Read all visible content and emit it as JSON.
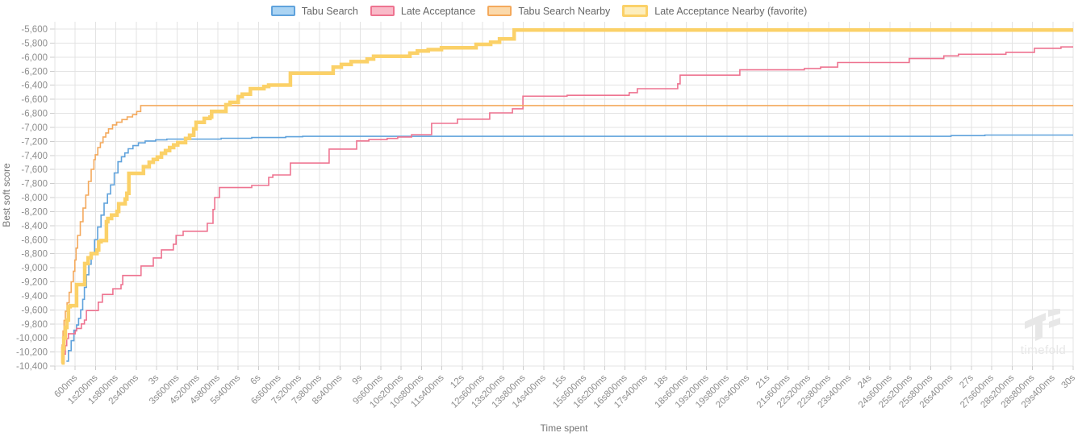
{
  "chart_data": {
    "type": "line",
    "title": "",
    "xlabel": "Time spent",
    "ylabel": "Best soft score",
    "legend_position": "top",
    "grid": true,
    "x_range_ms": [
      0,
      30000
    ],
    "y_range": [
      -10400,
      -5600
    ],
    "y_tick_step": 200,
    "x_tick_interval_ms": 600,
    "x_tick_labels": [
      "600ms",
      "1s200ms",
      "1s800ms",
      "2s400ms",
      "3s",
      "3s600ms",
      "4s200ms",
      "4s800ms",
      "5s400ms",
      "6s",
      "6s600ms",
      "7s200ms",
      "7s800ms",
      "8s400ms",
      "9s",
      "9s600ms",
      "10s200ms",
      "10s800ms",
      "11s400ms",
      "12s",
      "12s600ms",
      "13s200ms",
      "13s800ms",
      "14s400ms",
      "15s",
      "15s600ms",
      "16s200ms",
      "16s800ms",
      "17s400ms",
      "18s",
      "18s600ms",
      "19s200ms",
      "19s800ms",
      "20s400ms",
      "21s",
      "21s600ms",
      "22s200ms",
      "22s800ms",
      "23s400ms",
      "24s",
      "24s600ms",
      "25s200ms",
      "25s800ms",
      "26s400ms",
      "27s",
      "27s600ms",
      "28s200ms",
      "28s800ms",
      "29s400ms",
      "30s"
    ],
    "y_tick_labels": [
      "-5,600",
      "-5,800",
      "-6,000",
      "-6,200",
      "-6,400",
      "-6,600",
      "-6,800",
      "-7,000",
      "-7,200",
      "-7,400",
      "-7,600",
      "-7,800",
      "-8,000",
      "-8,200",
      "-8,400",
      "-8,600",
      "-8,800",
      "-9,000",
      "-9,200",
      "-9,400",
      "-9,600",
      "-9,800",
      "-10,000",
      "-10,200",
      "-10,400"
    ],
    "series": [
      {
        "name": "Tabu Search",
        "color": "#5fa2dc",
        "fill": "#abd4f3",
        "line_width": 1.6,
        "favorite": false,
        "points": [
          [
            340,
            -10330
          ],
          [
            400,
            -10180
          ],
          [
            480,
            -10040
          ],
          [
            560,
            -9890
          ],
          [
            640,
            -9815
          ],
          [
            700,
            -9720
          ],
          [
            760,
            -9600
          ],
          [
            820,
            -9450
          ],
          [
            870,
            -9280
          ],
          [
            930,
            -9100
          ],
          [
            1000,
            -8950
          ],
          [
            1070,
            -8800
          ],
          [
            1170,
            -8600
          ],
          [
            1260,
            -8420
          ],
          [
            1360,
            -8250
          ],
          [
            1450,
            -8080
          ],
          [
            1550,
            -7950
          ],
          [
            1640,
            -7820
          ],
          [
            1750,
            -7650
          ],
          [
            1860,
            -7490
          ],
          [
            1960,
            -7420
          ],
          [
            2060,
            -7365
          ],
          [
            2160,
            -7305
          ],
          [
            2300,
            -7260
          ],
          [
            2460,
            -7222
          ],
          [
            2660,
            -7195
          ],
          [
            2970,
            -7178
          ],
          [
            3300,
            -7168
          ],
          [
            4900,
            -7156
          ],
          [
            5800,
            -7146
          ],
          [
            6800,
            -7134
          ],
          [
            7300,
            -7128
          ],
          [
            25900,
            -7128
          ],
          [
            26400,
            -7118
          ],
          [
            27400,
            -7110
          ],
          [
            30000,
            -7110
          ]
        ]
      },
      {
        "name": "Late Acceptance",
        "color": "#ee7390",
        "fill": "#f9bac8",
        "line_width": 1.6,
        "favorite": false,
        "points": [
          [
            230,
            -10355
          ],
          [
            270,
            -10230
          ],
          [
            310,
            -10110
          ],
          [
            350,
            -10010
          ],
          [
            400,
            -9940
          ],
          [
            600,
            -9900
          ],
          [
            640,
            -9865
          ],
          [
            780,
            -9800
          ],
          [
            870,
            -9745
          ],
          [
            930,
            -9610
          ],
          [
            1280,
            -9490
          ],
          [
            1400,
            -9380
          ],
          [
            1710,
            -9300
          ],
          [
            1950,
            -9240
          ],
          [
            2000,
            -9110
          ],
          [
            2540,
            -8975
          ],
          [
            2900,
            -8860
          ],
          [
            3140,
            -8745
          ],
          [
            3490,
            -8665
          ],
          [
            3570,
            -8540
          ],
          [
            3780,
            -8480
          ],
          [
            4490,
            -8368
          ],
          [
            4660,
            -8170
          ],
          [
            4710,
            -8000
          ],
          [
            4850,
            -7858
          ],
          [
            5800,
            -7828
          ],
          [
            6300,
            -7713
          ],
          [
            6420,
            -7678
          ],
          [
            6940,
            -7508
          ],
          [
            8080,
            -7310
          ],
          [
            8890,
            -7194
          ],
          [
            9250,
            -7174
          ],
          [
            9790,
            -7158
          ],
          [
            10100,
            -7138
          ],
          [
            10510,
            -7104
          ],
          [
            11100,
            -6943
          ],
          [
            11860,
            -6884
          ],
          [
            12810,
            -6794
          ],
          [
            13480,
            -6736
          ],
          [
            13790,
            -6556
          ],
          [
            15090,
            -6544
          ],
          [
            16920,
            -6506
          ],
          [
            17160,
            -6450
          ],
          [
            18350,
            -6380
          ],
          [
            18420,
            -6257
          ],
          [
            20180,
            -6181
          ],
          [
            22080,
            -6164
          ],
          [
            22560,
            -6142
          ],
          [
            23060,
            -6077
          ],
          [
            25170,
            -6020
          ],
          [
            26190,
            -5982
          ],
          [
            26620,
            -5959
          ],
          [
            28020,
            -5932
          ],
          [
            28860,
            -5874
          ],
          [
            29640,
            -5855
          ],
          [
            30000,
            -5855
          ]
        ]
      },
      {
        "name": "Tabu Search Nearby",
        "color": "#f4a95c",
        "fill": "#fbd9ab",
        "line_width": 1.6,
        "favorite": false,
        "points": [
          [
            190,
            -10355
          ],
          [
            215,
            -10100
          ],
          [
            240,
            -9900
          ],
          [
            270,
            -9750
          ],
          [
            310,
            -9620
          ],
          [
            360,
            -9500
          ],
          [
            420,
            -9350
          ],
          [
            480,
            -9200
          ],
          [
            545,
            -9050
          ],
          [
            590,
            -8890
          ],
          [
            625,
            -8720
          ],
          [
            670,
            -8540
          ],
          [
            750,
            -8345
          ],
          [
            830,
            -8150
          ],
          [
            910,
            -7965
          ],
          [
            990,
            -7770
          ],
          [
            1070,
            -7598
          ],
          [
            1150,
            -7460
          ],
          [
            1190,
            -7390
          ],
          [
            1265,
            -7288
          ],
          [
            1340,
            -7219
          ],
          [
            1420,
            -7138
          ],
          [
            1500,
            -7080
          ],
          [
            1580,
            -7022
          ],
          [
            1700,
            -6965
          ],
          [
            1820,
            -6928
          ],
          [
            1975,
            -6890
          ],
          [
            2130,
            -6852
          ],
          [
            2290,
            -6820
          ],
          [
            2410,
            -6775
          ],
          [
            2530,
            -6690
          ],
          [
            30000,
            -6690
          ]
        ]
      },
      {
        "name": "Late Acceptance Nearby (favorite)",
        "color": "#fbd168",
        "fill": "#fdeebd",
        "line_width": 4.5,
        "favorite": true,
        "points": [
          [
            200,
            -10355
          ],
          [
            235,
            -10150
          ],
          [
            265,
            -10000
          ],
          [
            310,
            -9850
          ],
          [
            355,
            -9745
          ],
          [
            400,
            -9555
          ],
          [
            450,
            -9540
          ],
          [
            640,
            -9240
          ],
          [
            880,
            -8940
          ],
          [
            980,
            -8858
          ],
          [
            1070,
            -8798
          ],
          [
            1240,
            -8748
          ],
          [
            1290,
            -8630
          ],
          [
            1360,
            -8612
          ],
          [
            1520,
            -8345
          ],
          [
            1560,
            -8298
          ],
          [
            1670,
            -8250
          ],
          [
            1830,
            -8198
          ],
          [
            1880,
            -8090
          ],
          [
            2070,
            -8020
          ],
          [
            2120,
            -7940
          ],
          [
            2180,
            -7655
          ],
          [
            2610,
            -7560
          ],
          [
            2780,
            -7498
          ],
          [
            2900,
            -7458
          ],
          [
            3020,
            -7424
          ],
          [
            3140,
            -7368
          ],
          [
            3260,
            -7330
          ],
          [
            3380,
            -7288
          ],
          [
            3500,
            -7250
          ],
          [
            3620,
            -7218
          ],
          [
            3850,
            -7160
          ],
          [
            3970,
            -7113
          ],
          [
            4090,
            -7020
          ],
          [
            4160,
            -6930
          ],
          [
            4400,
            -6873
          ],
          [
            4570,
            -6853
          ],
          [
            4620,
            -6773
          ],
          [
            5040,
            -6678
          ],
          [
            5160,
            -6644
          ],
          [
            5400,
            -6563
          ],
          [
            5520,
            -6528
          ],
          [
            5760,
            -6450
          ],
          [
            6160,
            -6418
          ],
          [
            6300,
            -6398
          ],
          [
            6940,
            -6228
          ],
          [
            8200,
            -6143
          ],
          [
            8440,
            -6104
          ],
          [
            8730,
            -6064
          ],
          [
            9200,
            -6028
          ],
          [
            9390,
            -5988
          ],
          [
            10460,
            -5943
          ],
          [
            10680,
            -5913
          ],
          [
            11000,
            -5893
          ],
          [
            11390,
            -5868
          ],
          [
            12410,
            -5818
          ],
          [
            12840,
            -5788
          ],
          [
            13100,
            -5740
          ],
          [
            13530,
            -5614
          ],
          [
            30000,
            -5614
          ]
        ]
      }
    ]
  },
  "watermark": {
    "text": "timefold"
  },
  "colors": {
    "background": "#ffffff",
    "grid": "#e3e3e3",
    "tick_mark": "#cccccc",
    "tick_text": "#8e8e8e",
    "axis_title_text": "#757575",
    "legend_text": "#666666",
    "watermark": "#e7e7e7"
  }
}
